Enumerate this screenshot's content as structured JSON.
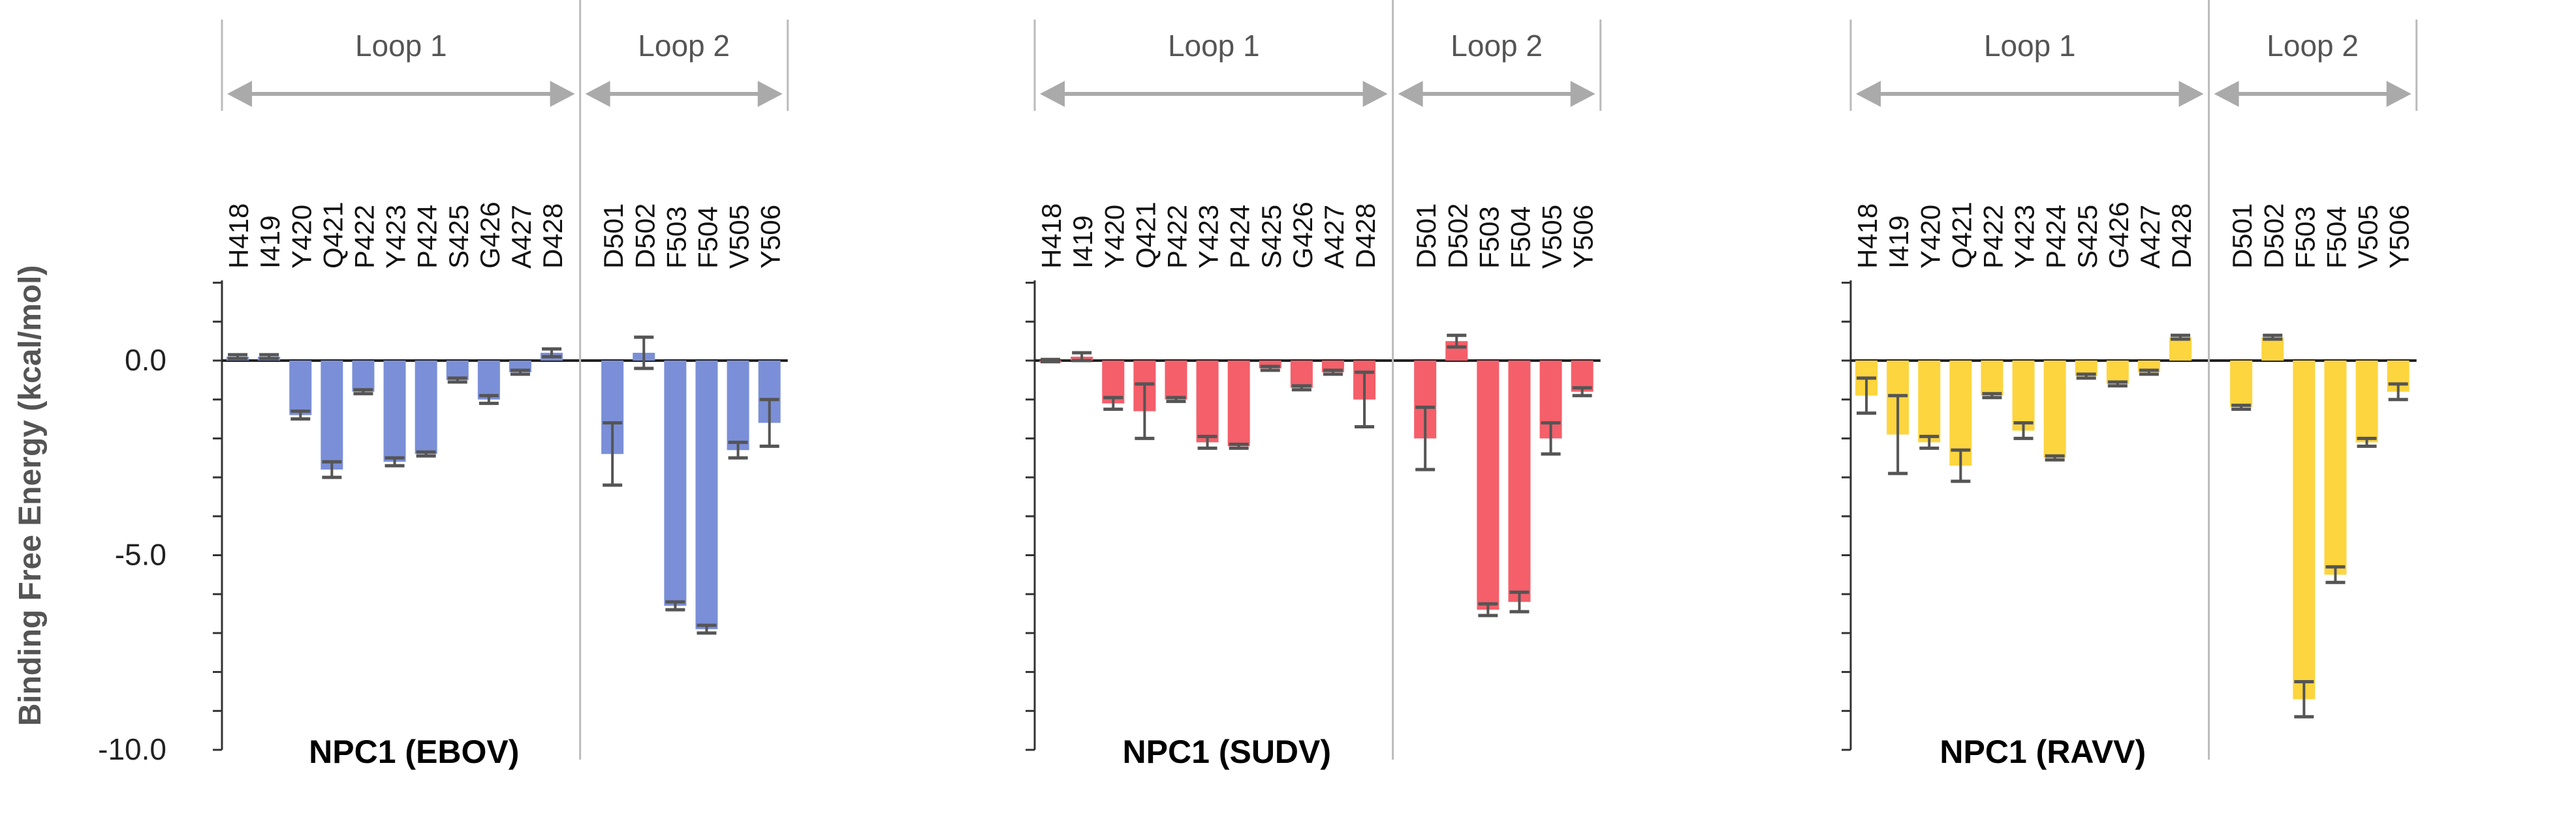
{
  "chart_data": {
    "type": "bar",
    "ylabel": "Binding Free Energy (kcal/mol)",
    "ylim": [
      -10.0,
      2.0
    ],
    "y_major_ticks": [
      0.0,
      -5.0,
      -10.0
    ],
    "y_major_tick_labels": [
      "0.0",
      "-5.0",
      "-10.0"
    ],
    "y_minor_step": 1.0,
    "regions": [
      {
        "label": "Loop 1",
        "first": 0,
        "last": 10
      },
      {
        "label": "Loop 2",
        "first": 11,
        "last": 16
      }
    ],
    "categories": [
      "H418",
      "I419",
      "Y420",
      "Q421",
      "P422",
      "Y423",
      "P424",
      "S425",
      "G426",
      "A427",
      "D428",
      "D501",
      "D502",
      "F503",
      "F504",
      "V505",
      "Y506"
    ],
    "panels": [
      {
        "name": "NPC1 (EBOV)",
        "color": "#7b8fd8",
        "values": [
          0.1,
          0.1,
          -1.4,
          -2.8,
          -0.8,
          -2.6,
          -2.4,
          -0.5,
          -1.0,
          -0.3,
          0.2,
          -2.4,
          0.2,
          -6.3,
          -6.9,
          -2.3,
          -1.6
        ],
        "errors": [
          0.05,
          0.05,
          0.1,
          0.2,
          0.05,
          0.1,
          0.05,
          0.05,
          0.1,
          0.05,
          0.1,
          0.8,
          0.4,
          0.1,
          0.1,
          0.2,
          0.6
        ]
      },
      {
        "name": "NPC1 (SUDV)",
        "color": "#f45f6a",
        "values": [
          0.0,
          0.1,
          -1.1,
          -1.3,
          -1.0,
          -2.1,
          -2.2,
          -0.2,
          -0.7,
          -0.3,
          -1.0,
          -2.0,
          0.5,
          -6.4,
          -6.2,
          -2.0,
          -0.8
        ],
        "errors": [
          0.03,
          0.1,
          0.15,
          0.7,
          0.05,
          0.15,
          0.05,
          0.05,
          0.05,
          0.05,
          0.7,
          0.8,
          0.15,
          0.15,
          0.25,
          0.4,
          0.1
        ]
      },
      {
        "name": "NPC1 (RAVV)",
        "color": "#fdd53f",
        "values": [
          -0.9,
          -1.9,
          -2.1,
          -2.7,
          -0.9,
          -1.8,
          -2.5,
          -0.4,
          -0.6,
          -0.3,
          0.6,
          -1.2,
          0.6,
          -8.7,
          -5.5,
          -2.1,
          -0.8
        ],
        "errors": [
          0.45,
          1.0,
          0.15,
          0.4,
          0.05,
          0.2,
          0.05,
          0.05,
          0.05,
          0.05,
          0.05,
          0.05,
          0.05,
          0.45,
          0.2,
          0.1,
          0.2
        ]
      }
    ]
  }
}
